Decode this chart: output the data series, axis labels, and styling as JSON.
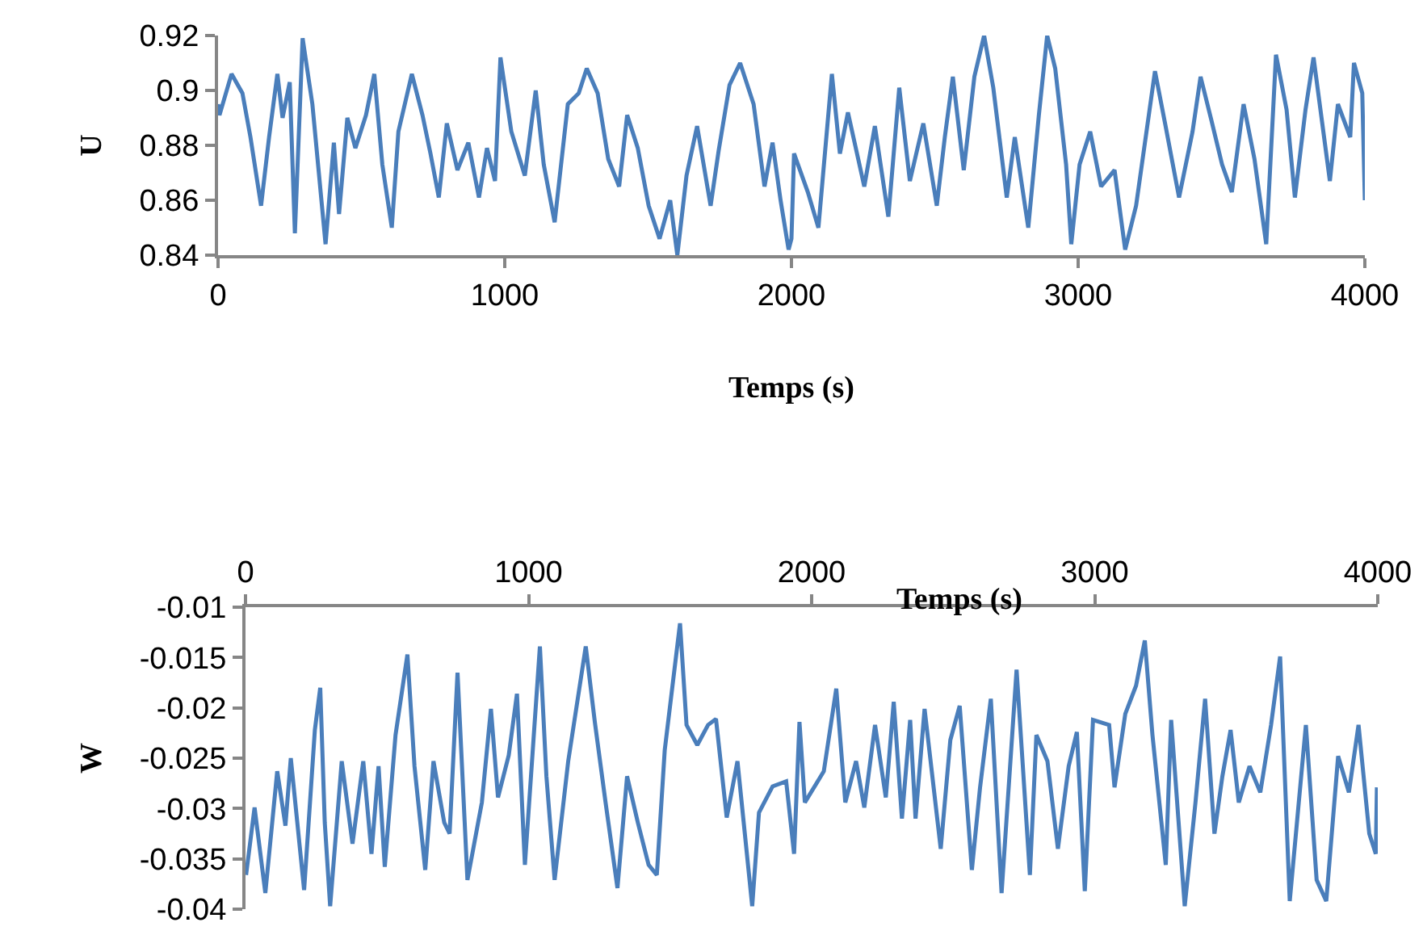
{
  "chart_data": [
    {
      "type": "line",
      "xlabel": "Temps (s)",
      "ylabel": "U",
      "xlim": [
        0,
        4000
      ],
      "xticks": [
        0,
        1000,
        2000,
        3000,
        4000
      ],
      "ylim": [
        0.84,
        0.92
      ],
      "yticks": [
        0.84,
        0.86,
        0.88,
        0.9,
        0.92
      ],
      "grid": false,
      "marker": "none",
      "line_style": "solid",
      "series": [
        {
          "color": "#4a7ebb",
          "x": [
            0,
            5,
            47,
            85,
            113,
            150,
            178,
            207,
            225,
            250,
            268,
            295,
            329,
            375,
            404,
            422,
            451,
            479,
            516,
            545,
            573,
            606,
            629,
            676,
            713,
            741,
            770,
            798,
            835,
            873,
            910,
            938,
            966,
            985,
            1023,
            1070,
            1108,
            1136,
            1174,
            1220,
            1258,
            1286,
            1324,
            1361,
            1399,
            1427,
            1464,
            1502,
            1540,
            1577,
            1602,
            1634,
            1671,
            1718,
            1746,
            1784,
            1821,
            1868,
            1906,
            1934,
            1962,
            1990,
            2000,
            2009,
            2057,
            2094,
            2141,
            2169,
            2197,
            2254,
            2291,
            2338,
            2376,
            2413,
            2460,
            2507,
            2535,
            2563,
            2601,
            2638,
            2672,
            2704,
            2751,
            2779,
            2826,
            2863,
            2892,
            2920,
            2958,
            2976,
            3005,
            3042,
            3080,
            3127,
            3164,
            3202,
            3268,
            3305,
            3352,
            3399,
            3427,
            3465,
            3502,
            3536,
            3577,
            3615,
            3656,
            3690,
            3727,
            3756,
            3793,
            3821,
            3878,
            3906,
            3949,
            3962,
            3991,
            4000
          ],
          "values": [
            0.895,
            0.891,
            0.906,
            0.899,
            0.883,
            0.858,
            0.883,
            0.906,
            0.89,
            0.903,
            0.848,
            0.919,
            0.895,
            0.844,
            0.881,
            0.855,
            0.89,
            0.879,
            0.891,
            0.906,
            0.873,
            0.85,
            0.885,
            0.906,
            0.891,
            0.877,
            0.861,
            0.888,
            0.871,
            0.881,
            0.861,
            0.879,
            0.867,
            0.912,
            0.885,
            0.869,
            0.9,
            0.873,
            0.852,
            0.895,
            0.899,
            0.908,
            0.899,
            0.875,
            0.865,
            0.891,
            0.879,
            0.858,
            0.846,
            0.86,
            0.84,
            0.869,
            0.887,
            0.858,
            0.878,
            0.902,
            0.91,
            0.895,
            0.865,
            0.881,
            0.86,
            0.842,
            0.846,
            0.877,
            0.863,
            0.85,
            0.906,
            0.877,
            0.892,
            0.865,
            0.887,
            0.854,
            0.901,
            0.867,
            0.888,
            0.858,
            0.883,
            0.905,
            0.871,
            0.905,
            0.92,
            0.901,
            0.861,
            0.883,
            0.85,
            0.891,
            0.92,
            0.908,
            0.873,
            0.844,
            0.873,
            0.885,
            0.865,
            0.871,
            0.842,
            0.858,
            0.907,
            0.887,
            0.861,
            0.885,
            0.905,
            0.889,
            0.873,
            0.863,
            0.895,
            0.875,
            0.844,
            0.913,
            0.893,
            0.861,
            0.893,
            0.912,
            0.867,
            0.895,
            0.883,
            0.91,
            0.899,
            0.86
          ]
        }
      ]
    },
    {
      "type": "line",
      "xlabel": "Temps (s)",
      "ylabel": "W",
      "xlim": [
        0,
        4000
      ],
      "xticks": [
        0,
        1000,
        2000,
        3000,
        4000
      ],
      "ylim": [
        -0.04,
        -0.01
      ],
      "yticks": [
        -0.04,
        -0.035,
        -0.03,
        -0.025,
        -0.02,
        -0.015,
        -0.01
      ],
      "grid": false,
      "marker": "none",
      "line_style": "solid",
      "series": [
        {
          "color": "#4a7ebb",
          "x": [
            2,
            32,
            70,
            112,
            141,
            160,
            207,
            245,
            264,
            280,
            299,
            340,
            378,
            416,
            445,
            470,
            492,
            530,
            572,
            597,
            635,
            664,
            702,
            721,
            749,
            784,
            835,
            867,
            892,
            930,
            959,
            987,
            1040,
            1063,
            1092,
            1140,
            1202,
            1234,
            1272,
            1314,
            1348,
            1386,
            1424,
            1453,
            1481,
            1535,
            1558,
            1596,
            1634,
            1662,
            1700,
            1738,
            1790,
            1814,
            1862,
            1910,
            1938,
            1957,
            1976,
            2043,
            2087,
            2119,
            2157,
            2186,
            2224,
            2262,
            2290,
            2319,
            2348,
            2367,
            2399,
            2456,
            2490,
            2523,
            2566,
            2595,
            2633,
            2671,
            2724,
            2771,
            2794,
            2833,
            2870,
            2908,
            2937,
            2965,
            2994,
            3051,
            3070,
            3108,
            3146,
            3177,
            3204,
            3251,
            3270,
            3318,
            3356,
            3390,
            3423,
            3451,
            3480,
            3509,
            3547,
            3585,
            3623,
            3655,
            3689,
            3746,
            3784,
            3818,
            3860,
            3898,
            3932,
            3970,
            3993,
            3997
          ],
          "values": [
            -0.0366,
            -0.0299,
            -0.0384,
            -0.0263,
            -0.0317,
            -0.025,
            -0.0381,
            -0.0222,
            -0.018,
            -0.0314,
            -0.0397,
            -0.0253,
            -0.0335,
            -0.0253,
            -0.0345,
            -0.0258,
            -0.0358,
            -0.0227,
            -0.0147,
            -0.0258,
            -0.0361,
            -0.0253,
            -0.0314,
            -0.0325,
            -0.0165,
            -0.0371,
            -0.0294,
            -0.0201,
            -0.0289,
            -0.0247,
            -0.0186,
            -0.0356,
            -0.0139,
            -0.0268,
            -0.0371,
            -0.0253,
            -0.0139,
            -0.0214,
            -0.0294,
            -0.0379,
            -0.0268,
            -0.0314,
            -0.0356,
            -0.0366,
            -0.0242,
            -0.0116,
            -0.0217,
            -0.0237,
            -0.0217,
            -0.0211,
            -0.0309,
            -0.0253,
            -0.0397,
            -0.0304,
            -0.0278,
            -0.0273,
            -0.0345,
            -0.0214,
            -0.0294,
            -0.0263,
            -0.0181,
            -0.0294,
            -0.0253,
            -0.0299,
            -0.0217,
            -0.0289,
            -0.0194,
            -0.031,
            -0.0212,
            -0.031,
            -0.0201,
            -0.034,
            -0.0232,
            -0.0198,
            -0.0361,
            -0.0279,
            -0.0191,
            -0.0384,
            -0.0162,
            -0.0366,
            -0.0227,
            -0.0253,
            -0.034,
            -0.0258,
            -0.0224,
            -0.0382,
            -0.0212,
            -0.0217,
            -0.0279,
            -0.0206,
            -0.0178,
            -0.0133,
            -0.0227,
            -0.0356,
            -0.0212,
            -0.0397,
            -0.0294,
            -0.0191,
            -0.0325,
            -0.0268,
            -0.0222,
            -0.0294,
            -0.0258,
            -0.0284,
            -0.0217,
            -0.0149,
            -0.0392,
            -0.0217,
            -0.0371,
            -0.0392,
            -0.0248,
            -0.0284,
            -0.0217,
            -0.0325,
            -0.0345,
            -0.0279
          ]
        }
      ]
    }
  ]
}
